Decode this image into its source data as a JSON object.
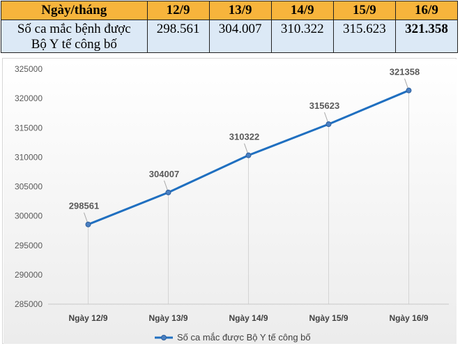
{
  "table": {
    "header_label": "Ngày/tháng",
    "dates": [
      "12/9",
      "13/9",
      "14/9",
      "15/9",
      "16/9"
    ],
    "row_label_line1": "Số ca mắc bệnh được",
    "row_label_line2": "Bộ Y tế công bố",
    "values": [
      "298.561",
      "304.007",
      "310.322",
      "315.623",
      "321.358"
    ]
  },
  "chart_data": {
    "type": "line",
    "categories": [
      "Ngày 12/9",
      "Ngày 13/9",
      "Ngày 14/9",
      "Ngày 15/9",
      "Ngày 16/9"
    ],
    "series": [
      {
        "name": "Số ca mắc được Bộ Y tế công bố",
        "values": [
          298561,
          304007,
          310322,
          315623,
          321358
        ],
        "color": "#1f6fc0"
      }
    ],
    "ylim": [
      285000,
      325000
    ],
    "yticks": [
      285000,
      290000,
      295000,
      300000,
      305000,
      310000,
      315000,
      320000,
      325000
    ],
    "grid": "vertical",
    "legend": "bottom",
    "title": "",
    "xlabel": "",
    "ylabel": ""
  }
}
